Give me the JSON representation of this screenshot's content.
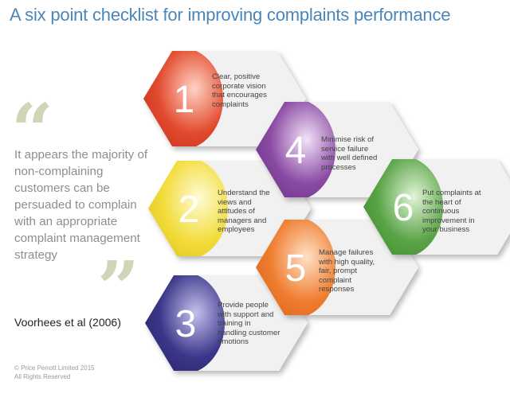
{
  "title": "A six point checklist for improving complaints performance",
  "quote": {
    "open_mark": "“",
    "close_mark": "”",
    "text": "It appears the majority of non-complaining customers can be persuaded to complain with an appropriate complaint management strategy",
    "author": "Voorhees et al (2006)"
  },
  "copyright": {
    "line1": "© Price Perrott Limited 2015",
    "line2": "All Rights Reserved"
  },
  "colors": {
    "hex1": "#e24a2e",
    "hex2": "#f2dc3a",
    "hex3": "#3b3688",
    "hex4": "#8a4aa3",
    "hex5": "#ef7d2e",
    "hex6": "#5aa447",
    "hex_bg": "#f1f1f1",
    "quote_marks": "#cfd6b7",
    "title": "#4a86b8"
  },
  "hexagons": [
    {
      "number": "1",
      "text": "Clear, positive corporate vision that encourages complaints"
    },
    {
      "number": "2",
      "text": "Understand the views and attitudes of managers and employees"
    },
    {
      "number": "3",
      "text": "Provide people with support and training in handling customer emotions"
    },
    {
      "number": "4",
      "text": "Minimise risk of service failure with well defined processes"
    },
    {
      "number": "5",
      "text": "Manage failures with high quality, fair, prompt complaint responses"
    },
    {
      "number": "6",
      "text": "Put complaints at the heart of continuous improvement in your business"
    }
  ]
}
